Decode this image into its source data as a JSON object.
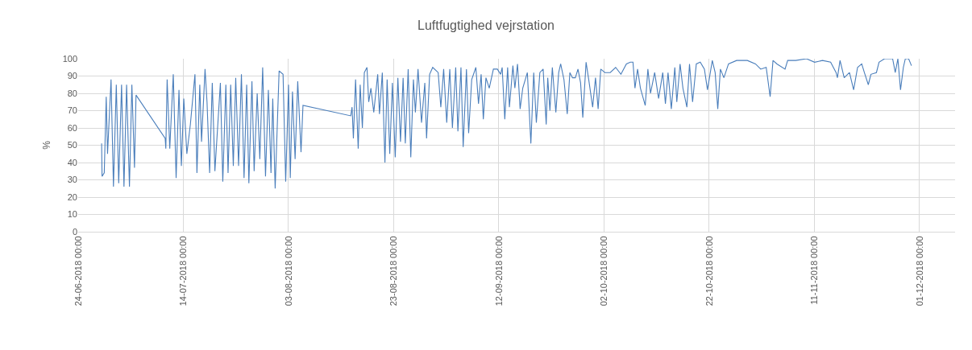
{
  "chart_data": {
    "type": "line",
    "title": "Luftfugtighed vejrstation",
    "ylabel": "%",
    "grid": true,
    "marker": "none",
    "line_style": "solid",
    "xlim": [
      "2018-06-24",
      "2018-12-07T18:00"
    ],
    "xticks": [
      {
        "value": "2018-06-24",
        "label": "24-06-2018 00:00"
      },
      {
        "value": "2018-07-14",
        "label": "14-07-2018 00:00"
      },
      {
        "value": "2018-08-03",
        "label": "03-08-2018 00:00"
      },
      {
        "value": "2018-08-23",
        "label": "23-08-2018 00:00"
      },
      {
        "value": "2018-09-12",
        "label": "12-09-2018 00:00"
      },
      {
        "value": "2018-10-02",
        "label": "02-10-2018 00:00"
      },
      {
        "value": "2018-10-22",
        "label": "22-10-2018 00:00"
      },
      {
        "value": "2018-11-11",
        "label": "11-11-2018 00:00"
      },
      {
        "value": "2018-12-01",
        "label": "01-12-2018 00:00"
      }
    ],
    "ylim": [
      0,
      100
    ],
    "yticks": [
      0,
      10,
      20,
      30,
      40,
      50,
      60,
      70,
      80,
      90,
      100
    ],
    "series": [
      {
        "color": "#4a7ebb",
        "x": [
          "2018-06-28T11:00",
          "2018-06-28T13:00",
          "2018-06-28T23:00",
          "2018-06-29T08:00",
          "2018-06-29T14:00",
          "2018-06-30T06:00",
          "2018-06-30T17:00",
          "2018-07-01T06:00",
          "2018-07-01T17:00",
          "2018-07-02T06:00",
          "2018-07-02T17:00",
          "2018-07-03T05:00",
          "2018-07-03T18:00",
          "2018-07-04T05:00",
          "2018-07-04T17:00",
          "2018-07-05T00:00",
          "2018-07-10T13:00",
          "2018-07-10T16:00",
          "2018-07-10T22:00",
          "2018-07-11T10:00",
          "2018-07-12T02:00",
          "2018-07-12T15:00",
          "2018-07-13T04:00",
          "2018-07-13T15:00",
          "2018-07-14T02:00",
          "2018-07-14T16:00",
          "2018-07-15T08:00",
          "2018-07-16T05:00",
          "2018-07-16T14:00",
          "2018-07-17T03:00",
          "2018-07-17T11:00",
          "2018-07-18T03:00",
          "2018-07-18T12:00",
          "2018-07-19T00:00",
          "2018-07-19T12:00",
          "2018-07-20T00:00",
          "2018-07-21T01:00",
          "2018-07-21T12:00",
          "2018-07-22T02:00",
          "2018-07-22T12:00",
          "2018-07-23T00:00",
          "2018-07-23T12:00",
          "2018-07-23T23:00",
          "2018-07-24T12:00",
          "2018-07-25T01:00",
          "2018-07-25T13:00",
          "2018-07-26T01:00",
          "2018-07-26T11:00",
          "2018-07-27T01:00",
          "2018-07-27T11:00",
          "2018-07-28T01:00",
          "2018-07-28T13:00",
          "2018-07-29T02:00",
          "2018-07-29T15:00",
          "2018-07-30T04:00",
          "2018-07-30T16:00",
          "2018-07-31T00:00",
          "2018-07-31T11:00",
          "2018-08-01T05:00",
          "2018-08-01T23:00",
          "2018-08-02T11:00",
          "2018-08-03T00:00",
          "2018-08-03T08:00",
          "2018-08-03T18:00",
          "2018-08-04T06:00",
          "2018-08-04T18:00",
          "2018-08-05T09:00",
          "2018-08-05T18:00",
          "2018-08-14T20:00",
          "2018-08-15T02:00",
          "2018-08-15T08:00",
          "2018-08-15T18:00",
          "2018-08-16T06:00",
          "2018-08-16T15:00",
          "2018-08-17T01:00",
          "2018-08-17T10:00",
          "2018-08-17T22:00",
          "2018-08-18T06:00",
          "2018-08-18T16:00",
          "2018-08-19T05:00",
          "2018-08-19T14:00",
          "2018-08-19T23:00",
          "2018-08-20T07:00",
          "2018-08-20T20:00",
          "2018-08-21T08:00",
          "2018-08-21T18:00",
          "2018-08-22T06:00",
          "2018-08-22T18:00",
          "2018-08-23T07:00",
          "2018-08-23T19:00",
          "2018-08-24T07:00",
          "2018-08-24T19:00",
          "2018-08-25T05:00",
          "2018-08-25T18:00",
          "2018-08-26T06:00",
          "2018-08-26T18:00",
          "2018-08-27T03:00",
          "2018-08-27T15:00",
          "2018-08-28T07:00",
          "2018-08-28T22:00",
          "2018-08-29T06:00",
          "2018-08-29T20:00",
          "2018-08-30T10:00",
          "2018-08-31T11:00",
          "2018-08-31T23:00",
          "2018-09-01T12:00",
          "2018-09-02T02:00",
          "2018-09-02T16:00",
          "2018-09-03T04:00",
          "2018-09-03T19:00",
          "2018-09-04T05:00",
          "2018-09-04T19:00",
          "2018-09-05T05:00",
          "2018-09-05T20:00",
          "2018-09-06T06:00",
          "2018-09-06T20:00",
          "2018-09-07T15:00",
          "2018-09-08T03:00",
          "2018-09-08T15:00",
          "2018-09-09T01:00",
          "2018-09-09T13:00",
          "2018-09-10T04:00",
          "2018-09-10T23:00",
          "2018-09-11T17:00",
          "2018-09-12T08:00",
          "2018-09-12T15:00",
          "2018-09-13T03:00",
          "2018-09-13T16:00",
          "2018-09-14T00:00",
          "2018-09-14T16:00",
          "2018-09-15T01:00",
          "2018-09-15T13:00",
          "2018-09-16T01:00",
          "2018-09-16T13:00",
          "2018-09-17T10:00",
          "2018-09-18T02:00",
          "2018-09-18T15:00",
          "2018-09-19T03:00",
          "2018-09-19T19:00",
          "2018-09-20T10:00",
          "2018-09-21T00:00",
          "2018-09-21T07:00",
          "2018-09-21T17:00",
          "2018-09-22T04:00",
          "2018-09-22T20:00",
          "2018-09-23T09:00",
          "2018-09-23T18:00",
          "2018-09-24T09:00",
          "2018-09-25T00:00",
          "2018-09-25T12:00",
          "2018-09-26T00:00",
          "2018-09-26T13:00",
          "2018-09-27T01:00",
          "2018-09-27T13:00",
          "2018-09-27T23:00",
          "2018-09-28T14:00",
          "2018-09-29T02:00",
          "2018-09-29T20:00",
          "2018-09-30T09:00",
          "2018-09-30T21:00",
          "2018-10-01T09:00",
          "2018-10-02T04:00",
          "2018-10-03T04:00",
          "2018-10-04T05:00",
          "2018-10-05T05:00",
          "2018-10-06T06:00",
          "2018-10-07T00:00",
          "2018-10-07T12:00",
          "2018-10-07T21:00",
          "2018-10-08T09:00",
          "2018-10-08T22:00",
          "2018-10-09T20:00",
          "2018-10-10T08:00",
          "2018-10-10T20:00",
          "2018-10-11T15:00",
          "2018-10-12T09:00",
          "2018-10-13T04:00",
          "2018-10-13T16:00",
          "2018-10-14T04:00",
          "2018-10-14T19:00",
          "2018-10-15T11:00",
          "2018-10-15T20:00",
          "2018-10-16T11:00",
          "2018-10-17T00:00",
          "2018-10-17T18:00",
          "2018-10-18T06:00",
          "2018-10-18T20:00",
          "2018-10-19T13:00",
          "2018-10-20T07:00",
          "2018-10-21T02:00",
          "2018-10-21T16:00",
          "2018-10-22T14:00",
          "2018-10-23T03:00",
          "2018-10-23T15:00",
          "2018-10-24T03:00",
          "2018-10-24T19:00",
          "2018-10-25T16:00",
          "2018-10-27T05:00",
          "2018-10-29T06:00",
          "2018-10-30T19:00",
          "2018-10-31T19:00",
          "2018-11-01T20:00",
          "2018-11-02T14:00",
          "2018-11-03T03:00",
          "2018-11-03T21:00",
          "2018-11-05T10:00",
          "2018-11-05T22:00",
          "2018-11-07T11:00",
          "2018-11-09T12:00",
          "2018-11-11T01:00",
          "2018-11-12T13:00",
          "2018-11-14T02:00",
          "2018-11-15T03:00",
          "2018-11-15T09:00",
          "2018-11-15T21:00",
          "2018-11-16T16:00",
          "2018-11-17T16:00",
          "2018-11-18T11:00",
          "2018-11-19T05:00",
          "2018-11-20T00:00",
          "2018-11-20T12:00",
          "2018-11-21T06:00",
          "2018-11-21T18:00",
          "2018-11-22T19:00",
          "2018-11-23T07:00",
          "2018-11-24T08:00",
          "2018-11-25T21:00",
          "2018-11-26T09:00",
          "2018-11-26T21:00",
          "2018-11-27T09:00",
          "2018-11-27T22:00",
          "2018-11-28T07:00",
          "2018-11-28T22:00",
          "2018-11-29T11:00"
        ],
        "values": [
          51,
          32,
          34,
          78,
          45,
          88,
          26,
          85,
          28,
          85,
          26,
          85,
          26,
          85,
          37,
          79,
          54,
          48,
          88,
          48,
          91,
          31,
          82,
          38,
          77,
          45,
          62,
          91,
          34,
          85,
          52,
          94,
          75,
          34,
          86,
          35,
          86,
          29,
          85,
          34,
          85,
          38,
          89,
          38,
          91,
          31,
          85,
          28,
          87,
          35,
          80,
          42,
          95,
          32,
          82,
          34,
          77,
          25,
          93,
          91,
          29,
          85,
          31,
          81,
          42,
          87,
          46,
          73,
          67,
          72,
          54,
          88,
          48,
          85,
          60,
          92,
          95,
          75,
          83,
          69,
          80,
          91,
          68,
          92,
          40,
          88,
          45,
          86,
          43,
          89,
          52,
          89,
          51,
          94,
          43,
          88,
          69,
          94,
          63,
          86,
          54,
          91,
          95,
          92,
          72,
          94,
          63,
          94,
          60,
          95,
          58,
          95,
          49,
          94,
          57,
          88,
          95,
          74,
          91,
          65,
          89,
          83,
          94,
          94,
          91,
          95,
          65,
          95,
          72,
          96,
          83,
          97,
          71,
          83,
          92,
          51,
          92,
          63,
          92,
          94,
          62,
          89,
          70,
          95,
          69,
          92,
          97,
          88,
          68,
          92,
          89,
          89,
          94,
          86,
          66,
          98,
          88,
          72,
          89,
          71,
          94,
          92,
          92,
          95,
          91,
          97,
          98,
          98,
          83,
          94,
          83,
          73,
          94,
          80,
          92,
          77,
          92,
          74,
          92,
          71,
          95,
          75,
          97,
          83,
          72,
          97,
          75,
          97,
          98,
          94,
          82,
          99,
          92,
          71,
          94,
          89,
          97,
          99,
          99,
          97,
          94,
          95,
          78,
          99,
          97,
          94,
          99,
          99,
          100,
          98,
          99,
          98,
          92,
          89,
          99,
          89,
          92,
          82,
          95,
          97,
          92,
          85,
          91,
          92,
          98,
          100,
          100,
          92,
          100,
          82,
          95,
          100,
          100,
          96
        ]
      }
    ]
  }
}
